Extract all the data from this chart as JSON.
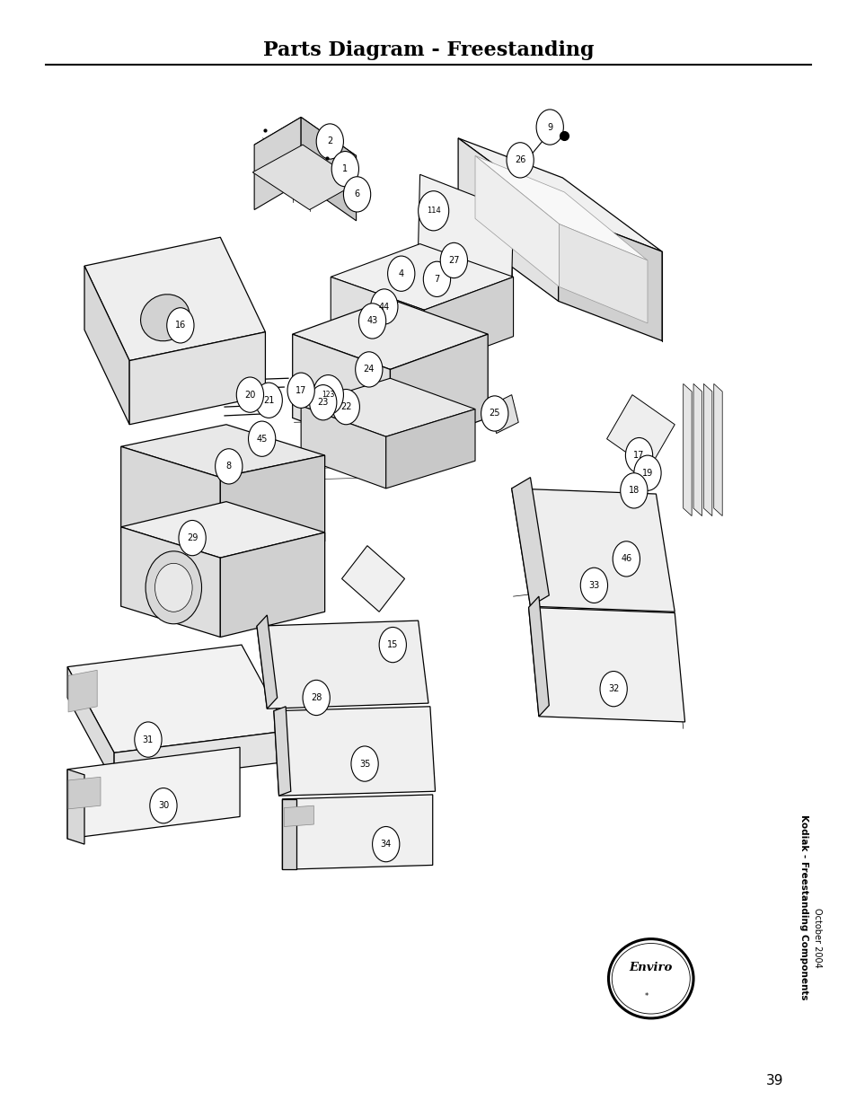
{
  "title": "Parts Diagram - Freestanding",
  "subtitle_rotated": "Kodiak - Freestanding Components",
  "date_rotated": "October 2004",
  "page_number": "39",
  "bg_color": "#ffffff",
  "fig_width": 9.54,
  "fig_height": 12.35
}
